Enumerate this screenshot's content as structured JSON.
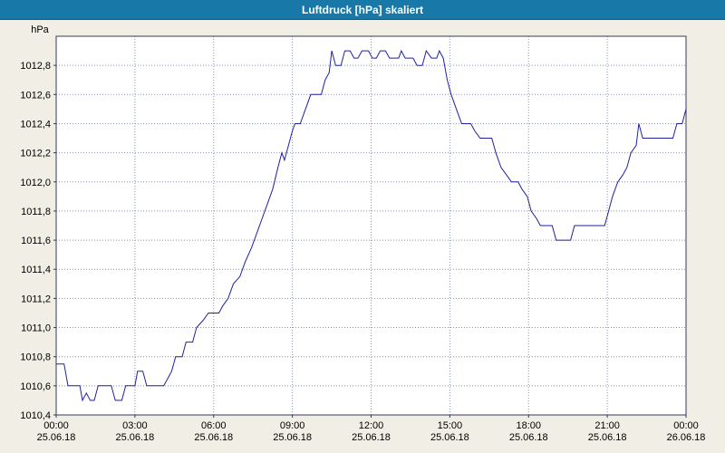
{
  "title": "Luftdruck [hPa] skaliert",
  "colors": {
    "titlebar_bg": "#1878a8",
    "titlebar_text": "#ffffff",
    "window_bg": "#f0eee5",
    "plot_bg": "#ffffff",
    "grid": "#8694b8",
    "border": "#353c5a",
    "line": "#2020a0",
    "label": "#000000"
  },
  "chart_data": {
    "type": "line",
    "title": "Luftdruck [hPa] skaliert",
    "ylabel": "hPa",
    "xlabel": "",
    "ylim": [
      1010.4,
      1013.0
    ],
    "xlim": [
      0,
      24
    ],
    "grid": true,
    "ytick_values": [
      1010.4,
      1010.6,
      1010.8,
      1011.0,
      1011.2,
      1011.4,
      1011.6,
      1011.8,
      1012.0,
      1012.2,
      1012.4,
      1012.6,
      1012.8
    ],
    "ytick_labels": [
      "1010,4",
      "1010,6",
      "1010,8",
      "1011,0",
      "1011,2",
      "1011,4",
      "1011,6",
      "1011,8",
      "1012,0",
      "1012,2",
      "1012,4",
      "1012,6",
      "1012,8"
    ],
    "xticks": [
      {
        "hour": 0,
        "time": "00:00",
        "date": "25.06.18"
      },
      {
        "hour": 3,
        "time": "03:00",
        "date": "25.06.18"
      },
      {
        "hour": 6,
        "time": "06:00",
        "date": "25.06.18"
      },
      {
        "hour": 9,
        "time": "09:00",
        "date": "25.06.18"
      },
      {
        "hour": 12,
        "time": "12:00",
        "date": "25.06.18"
      },
      {
        "hour": 15,
        "time": "15:00",
        "date": "25.06.18"
      },
      {
        "hour": 18,
        "time": "18:00",
        "date": "25.06.18"
      },
      {
        "hour": 21,
        "time": "21:00",
        "date": "25.06.18"
      },
      {
        "hour": 24,
        "time": "00:00",
        "date": "26.06.18"
      }
    ],
    "series": [
      {
        "name": "Luftdruck",
        "color": "#2020a0",
        "points": [
          [
            0,
            1010.75
          ],
          [
            0.3,
            1010.75
          ],
          [
            0.45,
            1010.6
          ],
          [
            0.9,
            1010.6
          ],
          [
            1.0,
            1010.5
          ],
          [
            1.15,
            1010.55
          ],
          [
            1.3,
            1010.5
          ],
          [
            1.45,
            1010.5
          ],
          [
            1.6,
            1010.6
          ],
          [
            2.1,
            1010.6
          ],
          [
            2.25,
            1010.5
          ],
          [
            2.5,
            1010.5
          ],
          [
            2.65,
            1010.6
          ],
          [
            3.0,
            1010.6
          ],
          [
            3.1,
            1010.7
          ],
          [
            3.3,
            1010.7
          ],
          [
            3.45,
            1010.6
          ],
          [
            4.1,
            1010.6
          ],
          [
            4.25,
            1010.65
          ],
          [
            4.4,
            1010.7
          ],
          [
            4.55,
            1010.8
          ],
          [
            4.8,
            1010.8
          ],
          [
            4.95,
            1010.9
          ],
          [
            5.2,
            1010.9
          ],
          [
            5.35,
            1011.0
          ],
          [
            5.6,
            1011.05
          ],
          [
            5.8,
            1011.1
          ],
          [
            6.2,
            1011.1
          ],
          [
            6.35,
            1011.15
          ],
          [
            6.55,
            1011.2
          ],
          [
            6.75,
            1011.3
          ],
          [
            7.0,
            1011.35
          ],
          [
            7.2,
            1011.45
          ],
          [
            7.45,
            1011.55
          ],
          [
            7.65,
            1011.65
          ],
          [
            7.85,
            1011.75
          ],
          [
            8.05,
            1011.85
          ],
          [
            8.25,
            1011.95
          ],
          [
            8.45,
            1012.1
          ],
          [
            8.6,
            1012.2
          ],
          [
            8.7,
            1012.15
          ],
          [
            8.85,
            1012.25
          ],
          [
            9.0,
            1012.35
          ],
          [
            9.1,
            1012.4
          ],
          [
            9.3,
            1012.4
          ],
          [
            9.5,
            1012.5
          ],
          [
            9.7,
            1012.6
          ],
          [
            10.1,
            1012.6
          ],
          [
            10.25,
            1012.7
          ],
          [
            10.4,
            1012.75
          ],
          [
            10.5,
            1012.9
          ],
          [
            10.65,
            1012.8
          ],
          [
            10.85,
            1012.8
          ],
          [
            11.0,
            1012.9
          ],
          [
            11.2,
            1012.9
          ],
          [
            11.35,
            1012.85
          ],
          [
            11.5,
            1012.85
          ],
          [
            11.65,
            1012.9
          ],
          [
            11.9,
            1012.9
          ],
          [
            12.05,
            1012.85
          ],
          [
            12.2,
            1012.85
          ],
          [
            12.35,
            1012.9
          ],
          [
            12.55,
            1012.9
          ],
          [
            12.7,
            1012.85
          ],
          [
            13.05,
            1012.85
          ],
          [
            13.15,
            1012.9
          ],
          [
            13.3,
            1012.85
          ],
          [
            13.6,
            1012.85
          ],
          [
            13.75,
            1012.8
          ],
          [
            13.95,
            1012.8
          ],
          [
            14.1,
            1012.9
          ],
          [
            14.3,
            1012.85
          ],
          [
            14.5,
            1012.85
          ],
          [
            14.6,
            1012.9
          ],
          [
            14.75,
            1012.85
          ],
          [
            14.9,
            1012.7
          ],
          [
            15.05,
            1012.6
          ],
          [
            15.25,
            1012.5
          ],
          [
            15.45,
            1012.4
          ],
          [
            15.8,
            1012.4
          ],
          [
            15.95,
            1012.35
          ],
          [
            16.15,
            1012.3
          ],
          [
            16.6,
            1012.3
          ],
          [
            16.75,
            1012.2
          ],
          [
            16.95,
            1012.1
          ],
          [
            17.15,
            1012.05
          ],
          [
            17.35,
            1012.0
          ],
          [
            17.6,
            1012.0
          ],
          [
            17.75,
            1011.95
          ],
          [
            17.95,
            1011.9
          ],
          [
            18.1,
            1011.8
          ],
          [
            18.3,
            1011.75
          ],
          [
            18.45,
            1011.7
          ],
          [
            18.9,
            1011.7
          ],
          [
            19.05,
            1011.6
          ],
          [
            19.6,
            1011.6
          ],
          [
            19.75,
            1011.7
          ],
          [
            20.9,
            1011.7
          ],
          [
            21.05,
            1011.8
          ],
          [
            21.2,
            1011.9
          ],
          [
            21.4,
            1012.0
          ],
          [
            21.6,
            1012.05
          ],
          [
            21.75,
            1012.1
          ],
          [
            21.9,
            1012.2
          ],
          [
            22.1,
            1012.25
          ],
          [
            22.2,
            1012.4
          ],
          [
            22.35,
            1012.3
          ],
          [
            23.5,
            1012.3
          ],
          [
            23.65,
            1012.4
          ],
          [
            23.85,
            1012.4
          ],
          [
            24,
            1012.5
          ]
        ]
      }
    ]
  }
}
